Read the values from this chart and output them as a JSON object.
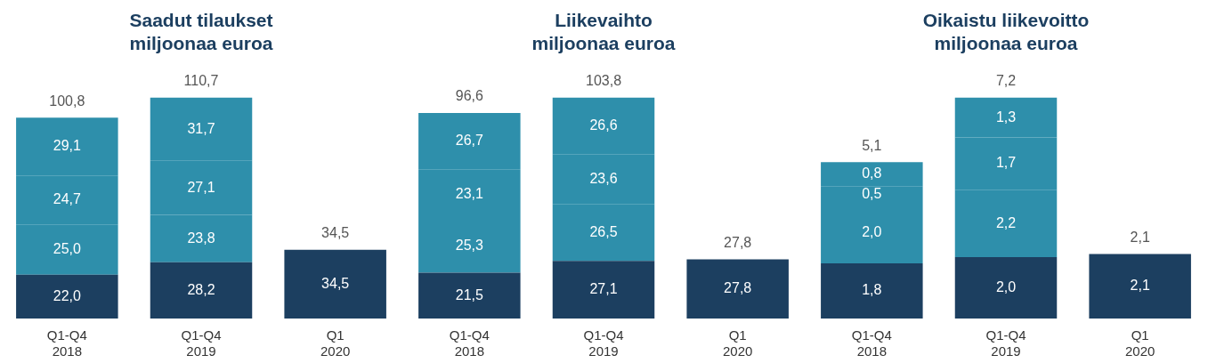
{
  "chart_data": [
    {
      "type": "bar",
      "title": "Saadut tilaukset",
      "subtitle": "miljoonaa euroa",
      "categories": [
        "Q1-Q4\n2018",
        "Q1-Q4\n2019",
        "Q1\n2020"
      ],
      "stacked": true,
      "tick_labels": "x",
      "series": [
        {
          "color": "#1c3f60",
          "values": [
            22.0,
            28.2,
            34.5
          ],
          "value_labels": [
            "22,0",
            "28,2",
            "34,5"
          ]
        },
        {
          "color": "#2e8fab",
          "values": [
            25.0,
            23.8,
            null
          ],
          "value_labels": [
            "25,0",
            "23,8",
            null
          ]
        },
        {
          "color": "#2e8fab",
          "values": [
            24.7,
            27.1,
            null
          ],
          "value_labels": [
            "24,7",
            "27,1",
            null
          ]
        },
        {
          "color": "#2e8fab",
          "values": [
            29.1,
            31.7,
            null
          ],
          "value_labels": [
            "29,1",
            "31,7",
            null
          ]
        }
      ],
      "totals": [
        "100,8",
        "110,7",
        "34,5"
      ]
    },
    {
      "type": "bar",
      "title": "Liikevaihto",
      "subtitle": "miljoonaa euroa",
      "categories": [
        "Q1-Q4\n2018",
        "Q1-Q4\n2019",
        "Q1\n2020"
      ],
      "stacked": true,
      "tick_labels": "x",
      "series": [
        {
          "color": "#1c3f60",
          "values": [
            21.5,
            27.1,
            27.8
          ],
          "value_labels": [
            "21,5",
            "27,1",
            "27,8"
          ]
        },
        {
          "color": "#2e8fab",
          "values": [
            25.3,
            26.5,
            null
          ],
          "value_labels": [
            "25,3",
            "26,5",
            null
          ]
        },
        {
          "color": "#2e8fab",
          "values": [
            23.1,
            23.6,
            null
          ],
          "value_labels": [
            "23,1",
            "23,6",
            null
          ]
        },
        {
          "color": "#2e8fab",
          "values": [
            26.7,
            26.6,
            null
          ],
          "value_labels": [
            "26,7",
            "26,6",
            null
          ]
        }
      ],
      "totals": [
        "96,6",
        "103,8",
        "27,8"
      ]
    },
    {
      "type": "bar",
      "title": "Oikaistu liikevoitto",
      "subtitle": "miljoonaa euroa",
      "categories": [
        "Q1-Q4\n2018",
        "Q1-Q4\n2019",
        "Q1\n2020"
      ],
      "stacked": true,
      "tick_labels": "x",
      "series": [
        {
          "color": "#1c3f60",
          "values": [
            1.8,
            2.0,
            2.1
          ],
          "value_labels": [
            "1,8",
            "2,0",
            "2,1"
          ]
        },
        {
          "color": "#2e8fab",
          "values": [
            2.0,
            2.2,
            null
          ],
          "value_labels": [
            "2,0",
            "2,2",
            null
          ]
        },
        {
          "color": "#2e8fab",
          "values": [
            0.5,
            1.7,
            null
          ],
          "value_labels": [
            "0,5",
            "1,7",
            null
          ]
        },
        {
          "color": "#2e8fab",
          "values": [
            0.8,
            1.3,
            null
          ],
          "value_labels": [
            "0,8",
            "1,3",
            null
          ]
        }
      ],
      "totals": [
        "5,1",
        "7,2",
        "2,1"
      ]
    }
  ]
}
